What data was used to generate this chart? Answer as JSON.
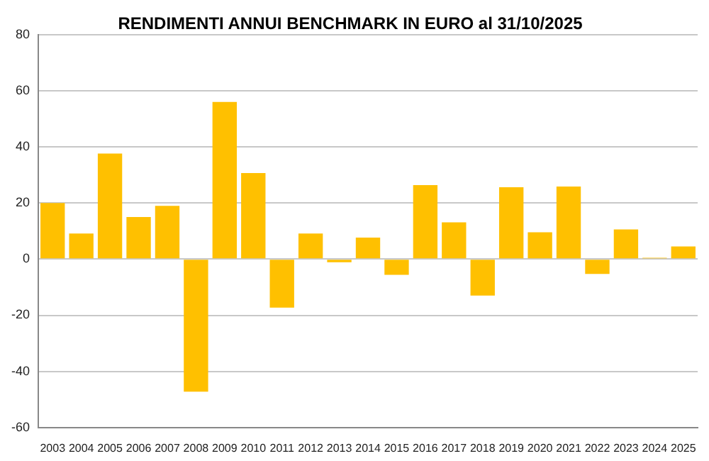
{
  "chart_data": {
    "type": "bar",
    "title": "RENDIMENTI ANNUI BENCHMARK IN EURO al 31/10/2025",
    "categories": [
      "2003",
      "2004",
      "2005",
      "2006",
      "2007",
      "2008",
      "2009",
      "2010",
      "2011",
      "2012",
      "2013",
      "2014",
      "2015",
      "2016",
      "2017",
      "2018",
      "2019",
      "2020",
      "2021",
      "2022",
      "2023",
      "2024",
      "2025"
    ],
    "values": [
      20,
      9.1,
      37.6,
      15,
      19,
      -47.2,
      56,
      30.7,
      -17.3,
      9.1,
      -1.1,
      7.7,
      -5.6,
      26.4,
      13.1,
      -13,
      25.6,
      9.6,
      25.9,
      -5.3,
      10.6,
      0.5,
      4.5
    ],
    "color": "#ffc000",
    "ylim": [
      -60,
      80
    ],
    "yticks": [
      -60,
      -40,
      -20,
      0,
      20,
      40,
      60,
      80
    ],
    "grid": "y",
    "legend": false
  }
}
